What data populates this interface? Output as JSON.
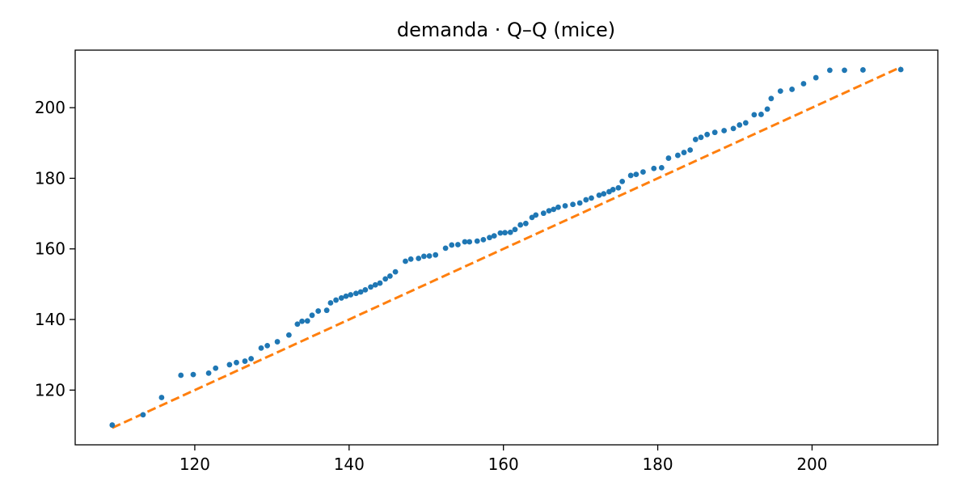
{
  "chart_data": {
    "type": "scatter",
    "title": "demanda · Q–Q (mice)",
    "xlabel": "",
    "ylabel": "",
    "xlim": [
      104.5,
      216.3
    ],
    "ylim": [
      104.5,
      216.3
    ],
    "x_ticks": [
      120,
      140,
      160,
      180,
      200
    ],
    "y_ticks": [
      120,
      140,
      160,
      180,
      200
    ],
    "grid": false,
    "legend": "none",
    "colors": {
      "points": "#1f77b4",
      "reference_line": "#ff7f0e"
    },
    "series": [
      {
        "kind": "points",
        "x": [
          109.3,
          113.3,
          115.7,
          118.2,
          119.8,
          121.8,
          122.7,
          124.5,
          125.4,
          126.5,
          127.3,
          128.6,
          129.4,
          130.7,
          132.2,
          133.3,
          133.9,
          134.6,
          135.2,
          136.0,
          137.1,
          137.6,
          138.3,
          139.0,
          139.6,
          140.2,
          140.9,
          141.5,
          142.1,
          142.8,
          143.4,
          144.0,
          144.7,
          145.3,
          146.0,
          147.3,
          148.0,
          149.0,
          149.7,
          150.4,
          151.2,
          152.5,
          153.3,
          154.1,
          155.0,
          155.6,
          156.6,
          157.4,
          158.2,
          158.8,
          159.6,
          160.2,
          160.9,
          161.5,
          162.2,
          162.9,
          163.7,
          164.2,
          165.2,
          165.9,
          166.5,
          167.1,
          168.0,
          169.0,
          169.9,
          170.7,
          171.4,
          172.4,
          173.0,
          173.7,
          174.2,
          174.9,
          175.4,
          176.5,
          177.2,
          178.1,
          179.5,
          180.5,
          181.4,
          182.6,
          183.4,
          184.2,
          184.9,
          185.6,
          186.4,
          187.4,
          188.6,
          189.8,
          190.6,
          191.4,
          192.5,
          193.4,
          194.2,
          194.7,
          195.9,
          197.4,
          198.9,
          200.5,
          202.3,
          204.2,
          206.6,
          211.5
        ],
        "y": [
          110.1,
          113.0,
          117.9,
          124.2,
          124.4,
          124.8,
          126.2,
          127.2,
          127.8,
          128.2,
          128.9,
          131.9,
          132.6,
          133.7,
          135.6,
          138.7,
          139.5,
          139.6,
          141.2,
          142.4,
          142.6,
          144.7,
          145.5,
          146.1,
          146.6,
          147.0,
          147.4,
          147.8,
          148.4,
          149.2,
          149.8,
          150.3,
          151.5,
          152.3,
          153.5,
          156.5,
          157.1,
          157.3,
          157.9,
          158.0,
          158.3,
          160.2,
          161.1,
          161.2,
          162.0,
          162.0,
          162.2,
          162.6,
          163.2,
          163.7,
          164.5,
          164.6,
          164.7,
          165.5,
          166.8,
          167.2,
          168.9,
          169.6,
          170.1,
          170.8,
          171.2,
          171.8,
          172.2,
          172.6,
          173.0,
          173.9,
          174.4,
          175.2,
          175.6,
          176.2,
          176.8,
          177.3,
          179.1,
          180.8,
          181.1,
          181.8,
          182.8,
          183.0,
          185.7,
          186.5,
          187.3,
          188.0,
          191.0,
          191.6,
          192.4,
          193.0,
          193.5,
          194.1,
          195.1,
          195.7,
          198.0,
          198.1,
          199.6,
          202.6,
          204.7,
          205.2,
          206.8,
          208.5,
          210.6,
          210.6,
          210.7,
          210.8
        ]
      },
      {
        "kind": "reference_line",
        "style": "dashed",
        "x": [
          109.3,
          211.5
        ],
        "y": [
          109.3,
          211.5
        ]
      }
    ]
  }
}
